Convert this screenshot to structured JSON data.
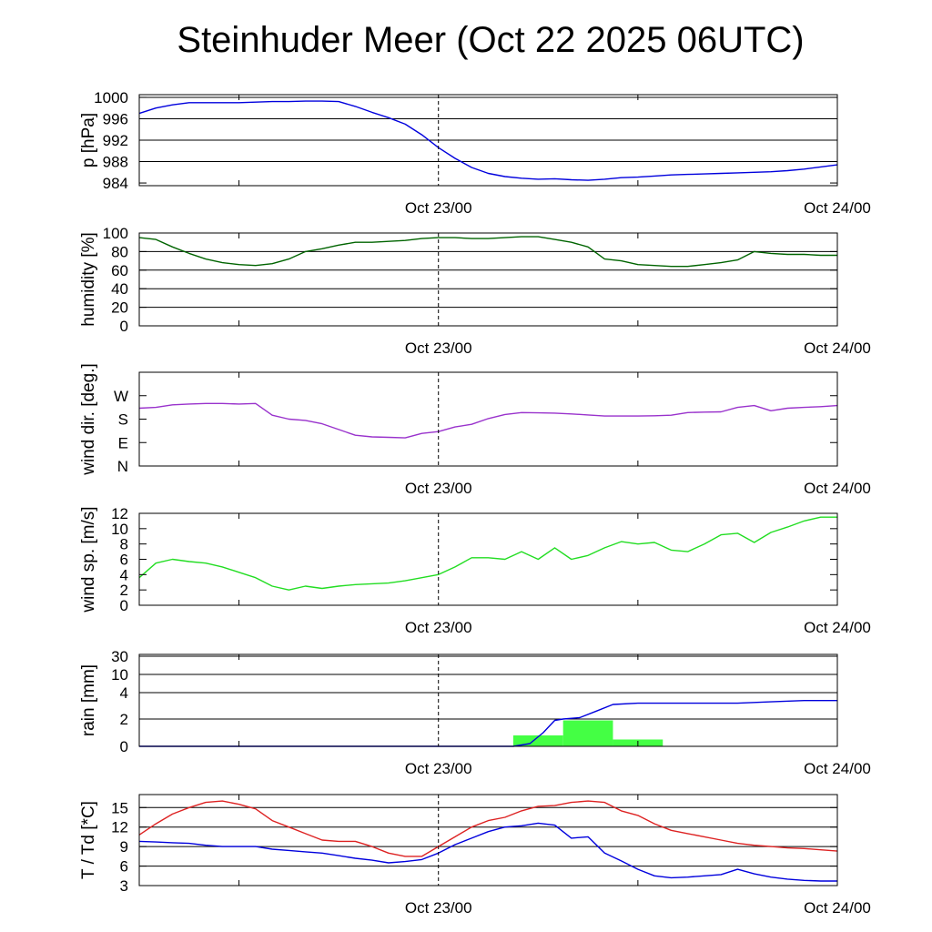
{
  "title": "Steinhuder Meer (Oct 22 2025 06UTC)",
  "chart_data": [
    {
      "type": "line",
      "ylabel": "p [hPa]",
      "xlabels": [
        "Oct 23/00",
        "Oct 24/00"
      ],
      "ylim": [
        983.5,
        1000.5
      ],
      "yticks": [
        984,
        988,
        992,
        996,
        1000
      ],
      "ytick_labels": [
        "984",
        "988",
        "992",
        "996",
        "1000"
      ],
      "grid_lines": [
        988,
        992,
        996,
        1000
      ],
      "series": [
        {
          "color": "#0000dd",
          "x": [
            0,
            1,
            2,
            3,
            4,
            5,
            6,
            7,
            8,
            9,
            10,
            11,
            12,
            13,
            14,
            15,
            16,
            17,
            18,
            19,
            20,
            21,
            22,
            23,
            24,
            25,
            26,
            27,
            28,
            29,
            30,
            31,
            32,
            33,
            34,
            35,
            36,
            37,
            38,
            39,
            40,
            41,
            42
          ],
          "y": [
            997.0,
            998.0,
            998.6,
            999.0,
            999.0,
            999.0,
            999.0,
            999.1,
            999.2,
            999.2,
            999.3,
            999.3,
            999.2,
            998.3,
            997.2,
            996.2,
            995.0,
            993.0,
            990.6,
            988.6,
            986.9,
            985.8,
            985.2,
            984.9,
            984.7,
            984.8,
            984.6,
            984.5,
            984.7,
            985.0,
            985.1,
            985.3,
            985.5,
            985.6,
            985.7,
            985.8,
            985.9,
            986.0,
            986.1,
            986.3,
            986.6,
            987.0,
            987.4
          ]
        }
      ]
    },
    {
      "type": "line",
      "ylabel": "humidity [%]",
      "xlabels": [
        "Oct 23/00",
        "Oct 24/00"
      ],
      "ylim": [
        0,
        100
      ],
      "yticks": [
        0,
        20,
        40,
        60,
        80,
        100
      ],
      "ytick_labels": [
        "0",
        "20",
        "40",
        "60",
        "80",
        "100"
      ],
      "grid_lines": [
        20,
        40,
        60,
        80,
        100
      ],
      "series": [
        {
          "color": "#006400",
          "x": [
            0,
            1,
            2,
            3,
            4,
            5,
            6,
            7,
            8,
            9,
            10,
            11,
            12,
            13,
            14,
            15,
            16,
            17,
            18,
            19,
            20,
            21,
            22,
            23,
            24,
            25,
            26,
            27,
            28,
            29,
            30,
            31,
            32,
            33,
            34,
            35,
            36,
            37,
            38,
            39,
            40,
            41,
            42
          ],
          "y": [
            95,
            93,
            85,
            78,
            72,
            68,
            66,
            65,
            67,
            72,
            80,
            83,
            87,
            90,
            90,
            91,
            92,
            94,
            95,
            95,
            94,
            94,
            95,
            96,
            96,
            93,
            90,
            85,
            72,
            70,
            66,
            65,
            64,
            64,
            66,
            68,
            71,
            80,
            78,
            77,
            77,
            76,
            76
          ]
        }
      ]
    },
    {
      "type": "line",
      "ylabel": "wind dir. [deg.]",
      "xlabels": [
        "Oct 23/00",
        "Oct 24/00"
      ],
      "ylim": [
        0,
        360
      ],
      "yticks": [
        0,
        90,
        180,
        270
      ],
      "ytick_labels": [
        "N",
        "E",
        "S",
        "W"
      ],
      "grid_lines": [],
      "series": [
        {
          "color": "#9932cc",
          "x": [
            0,
            1,
            2,
            3,
            4,
            5,
            6,
            7,
            8,
            9,
            10,
            11,
            12,
            13,
            14,
            15,
            16,
            17,
            18,
            19,
            20,
            21,
            22,
            23,
            24,
            25,
            26,
            27,
            28,
            29,
            30,
            31,
            32,
            33,
            34,
            35,
            36,
            37,
            38,
            39,
            40,
            41,
            42
          ],
          "y": [
            222,
            225,
            235,
            238,
            240,
            240,
            238,
            240,
            195,
            180,
            175,
            162,
            140,
            118,
            112,
            110,
            108,
            125,
            132,
            150,
            160,
            182,
            198,
            205,
            204,
            203,
            200,
            196,
            192,
            192,
            192,
            193,
            195,
            205,
            207,
            208,
            225,
            232,
            212,
            222,
            225,
            228,
            232
          ]
        }
      ]
    },
    {
      "type": "line",
      "ylabel": "wind sp. [m/s]",
      "xlabels": [
        "Oct 23/00",
        "Oct 24/00"
      ],
      "ylim": [
        0,
        12
      ],
      "yticks": [
        0,
        2,
        4,
        6,
        8,
        10,
        12
      ],
      "ytick_labels": [
        "0",
        "2",
        "4",
        "6",
        "8",
        "10",
        "12"
      ],
      "grid_lines": [],
      "series": [
        {
          "color": "#22dd22",
          "x": [
            0,
            1,
            2,
            3,
            4,
            5,
            6,
            7,
            8,
            9,
            10,
            11,
            12,
            13,
            14,
            15,
            16,
            17,
            18,
            19,
            20,
            21,
            22,
            23,
            24,
            25,
            26,
            27,
            28,
            29,
            30,
            31,
            32,
            33,
            34,
            35,
            36,
            37,
            38,
            39,
            40,
            41,
            42
          ],
          "y": [
            3.6,
            5.5,
            6.0,
            5.7,
            5.5,
            5.0,
            4.3,
            3.6,
            2.5,
            2.0,
            2.5,
            2.2,
            2.5,
            2.7,
            2.8,
            2.9,
            3.2,
            3.6,
            4.0,
            5.0,
            6.2,
            6.2,
            6.0,
            7.0,
            6.0,
            7.5,
            6.0,
            6.5,
            7.5,
            8.3,
            8.0,
            8.2,
            7.2,
            7.0,
            8.0,
            9.2,
            9.4,
            8.2,
            9.5,
            10.2,
            11.0,
            11.5,
            11.5
          ]
        }
      ]
    },
    {
      "type": "bar",
      "ylabel": "rain [mm]",
      "xlabels": [
        "Oct 23/00",
        "Oct 24/00"
      ],
      "ylim": [
        0,
        30
      ],
      "y_scale": "nonlinear",
      "yticks": [
        0,
        2,
        4,
        10,
        30
      ],
      "ytick_labels": [
        "0",
        "2",
        "4",
        "10",
        "30"
      ],
      "grid_lines": [
        2,
        4,
        10,
        30
      ],
      "bars": {
        "color": "#44ff44",
        "bins": [
          {
            "start": 22.5,
            "end": 25.5,
            "value": 0.8
          },
          {
            "start": 25.5,
            "end": 28.5,
            "value": 1.9
          },
          {
            "start": 28.5,
            "end": 31.5,
            "value": 0.5
          }
        ]
      },
      "series": [
        {
          "color": "#0000dd",
          "name": "",
          "x": [
            0,
            22.5,
            23.5,
            24.3,
            25.0,
            25.5,
            26.5,
            27.5,
            28.5,
            30,
            32,
            34,
            36,
            38,
            40,
            42
          ],
          "y": [
            0,
            0,
            0.2,
            1.0,
            1.9,
            2.0,
            2.1,
            2.6,
            3.1,
            3.2,
            3.2,
            3.2,
            3.2,
            3.3,
            3.4,
            3.4
          ]
        }
      ]
    },
    {
      "type": "line",
      "ylabel": "T / Td [*C]",
      "xlabels": [
        "Oct 23/00",
        "Oct 24/00"
      ],
      "ylim": [
        3,
        17
      ],
      "yticks": [
        3,
        6,
        9,
        12,
        15
      ],
      "ytick_labels": [
        "3",
        "6",
        "9",
        "12",
        "15"
      ],
      "grid_lines": [
        6,
        9,
        12,
        15
      ],
      "series": [
        {
          "color": "#dd2222",
          "name": "",
          "x": [
            0,
            1,
            2,
            3,
            4,
            5,
            6,
            7,
            8,
            9,
            10,
            11,
            12,
            13,
            14,
            15,
            16,
            17,
            18,
            19,
            20,
            21,
            22,
            23,
            24,
            25,
            26,
            27,
            28,
            29,
            30,
            31,
            32,
            33,
            34,
            35,
            36,
            37,
            38,
            39,
            40,
            41,
            42
          ],
          "y": [
            10.8,
            12.5,
            14.0,
            15.0,
            15.8,
            16.0,
            15.5,
            14.8,
            13.0,
            12.0,
            11.0,
            10.0,
            9.8,
            9.8,
            9.0,
            8.0,
            7.5,
            7.5,
            9.0,
            10.5,
            12.0,
            13.0,
            13.5,
            14.5,
            15.2,
            15.3,
            15.8,
            16.0,
            15.8,
            14.5,
            13.8,
            12.5,
            11.5,
            11.0,
            10.5,
            10.0,
            9.5,
            9.2,
            9.0,
            8.8,
            8.7,
            8.5,
            8.3
          ]
        },
        {
          "color": "#0000dd",
          "name": "",
          "x": [
            0,
            1,
            2,
            3,
            4,
            5,
            6,
            7,
            8,
            9,
            10,
            11,
            12,
            13,
            14,
            15,
            16,
            17,
            18,
            19,
            20,
            21,
            22,
            23,
            24,
            25,
            26,
            27,
            28,
            29,
            30,
            31,
            32,
            33,
            34,
            35,
            36,
            37,
            38,
            39,
            40,
            41,
            42
          ],
          "y": [
            9.8,
            9.7,
            9.6,
            9.5,
            9.2,
            9.0,
            9.0,
            9.0,
            8.6,
            8.4,
            8.2,
            8.0,
            7.6,
            7.2,
            6.9,
            6.5,
            6.7,
            7.0,
            8.0,
            9.3,
            10.3,
            11.3,
            12.0,
            12.2,
            12.6,
            12.3,
            10.3,
            10.5,
            8.0,
            6.8,
            5.5,
            4.5,
            4.2,
            4.3,
            4.5,
            4.7,
            5.5,
            4.8,
            4.3,
            4.0,
            3.8,
            3.7,
            3.7
          ]
        }
      ]
    }
  ]
}
